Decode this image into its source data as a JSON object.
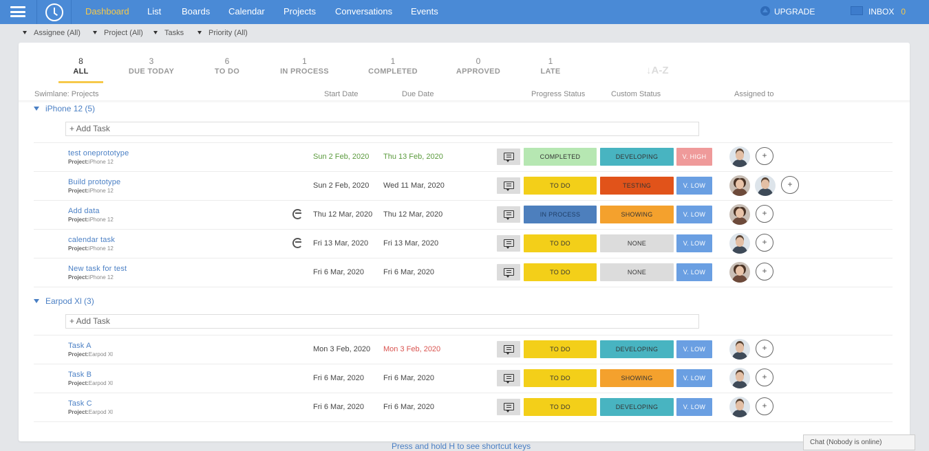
{
  "nav": {
    "items": [
      "Dashboard",
      "List",
      "Boards",
      "Calendar",
      "Projects",
      "Conversations",
      "Events"
    ],
    "active": "Dashboard",
    "upgrade_label": "UPGRADE",
    "inbox_label": "INBOX",
    "inbox_count": "0"
  },
  "filters": [
    "Assignee (All)",
    "Project (All)",
    "Tasks",
    "Priority (All)"
  ],
  "tabs": [
    {
      "count": "8",
      "label": "ALL"
    },
    {
      "count": "3",
      "label": "DUE TODAY"
    },
    {
      "count": "6",
      "label": "TO DO"
    },
    {
      "count": "1",
      "label": "IN PROCESS"
    },
    {
      "count": "1",
      "label": "COMPLETED"
    },
    {
      "count": "0",
      "label": "APPROVED"
    },
    {
      "count": "1",
      "label": "LATE"
    }
  ],
  "sort_label": "↓A-Z",
  "columns": {
    "swimlane": "Swimlane: Projects",
    "start": "Start Date",
    "due": "Due Date",
    "progress": "Progress Status",
    "custom": "Custom Status",
    "assigned": "Assigned to"
  },
  "add_task_label": "+ Add Task",
  "project_prefix": "Project:",
  "colors": {
    "topbar": "#4a8ad6",
    "accent": "#f6c94a",
    "completed": "#b6e7b2",
    "todo": "#f3cf19",
    "in_process": "#4d7fbd",
    "developing": "#48b4c1",
    "testing": "#e1531a",
    "showing": "#f4a12d",
    "none": "#dcdcdc",
    "v_high": "#ef9a9a",
    "v_low": "#6a9fe2"
  },
  "groups": [
    {
      "title": "iPhone 12 (5)",
      "tasks": [
        {
          "name": "test oneprototype",
          "project": "iPhone 12",
          "start": "Sun 2 Feb, 2020",
          "due": "Thu 13 Feb, 2020",
          "date_style": "green",
          "progress": "COMPLETED",
          "progress_color": "#b6e7b2",
          "custom": "DEVELOPING",
          "custom_color": "#48b4c1",
          "priority": "V. HIGH",
          "priority_color": "#ef9a9a",
          "dependency": false,
          "assignees": [
            "male"
          ]
        },
        {
          "name": "Build prototype",
          "project": "iPhone 12",
          "start": "Sun 2 Feb, 2020",
          "due": "Wed 11 Mar, 2020",
          "date_style": "",
          "progress": "TO DO",
          "progress_color": "#f3cf19",
          "custom": "TESTING",
          "custom_color": "#e1531a",
          "priority": "V. LOW",
          "priority_color": "#6a9fe2",
          "dependency": false,
          "assignees": [
            "female",
            "male"
          ]
        },
        {
          "name": "Add data",
          "project": "iPhone 12",
          "start": "Thu 12 Mar, 2020",
          "due": "Thu 12 Mar, 2020",
          "date_style": "",
          "progress": "IN PROCESS",
          "progress_color": "#4d7fbd",
          "custom": "SHOWING",
          "custom_color": "#f4a12d",
          "priority": "V. LOW",
          "priority_color": "#6a9fe2",
          "dependency": true,
          "assignees": [
            "female"
          ]
        },
        {
          "name": "calendar task",
          "project": "iPhone 12",
          "start": "Fri 13 Mar, 2020",
          "due": "Fri 13 Mar, 2020",
          "date_style": "",
          "progress": "TO DO",
          "progress_color": "#f3cf19",
          "custom": "NONE",
          "custom_color": "#dcdcdc",
          "priority": "V. LOW",
          "priority_color": "#6a9fe2",
          "dependency": true,
          "assignees": [
            "male"
          ]
        },
        {
          "name": "New task for test",
          "project": "iPhone 12",
          "start": "Fri 6 Mar, 2020",
          "due": "Fri 6 Mar, 2020",
          "date_style": "",
          "progress": "TO DO",
          "progress_color": "#f3cf19",
          "custom": "NONE",
          "custom_color": "#dcdcdc",
          "priority": "V. LOW",
          "priority_color": "#6a9fe2",
          "dependency": false,
          "assignees": [
            "female"
          ]
        }
      ]
    },
    {
      "title": "Earpod Xl (3)",
      "tasks": [
        {
          "name": "Task A",
          "project": "Earpod Xl",
          "start": "Mon 3 Feb, 2020",
          "due": "Mon 3 Feb, 2020",
          "date_style": "red",
          "progress": "TO DO",
          "progress_color": "#f3cf19",
          "custom": "DEVELOPING",
          "custom_color": "#48b4c1",
          "priority": "V. LOW",
          "priority_color": "#6a9fe2",
          "dependency": false,
          "assignees": [
            "male"
          ]
        },
        {
          "name": "Task B",
          "project": "Earpod Xl",
          "start": "Fri 6 Mar, 2020",
          "due": "Fri 6 Mar, 2020",
          "date_style": "",
          "progress": "TO DO",
          "progress_color": "#f3cf19",
          "custom": "SHOWING",
          "custom_color": "#f4a12d",
          "priority": "V. LOW",
          "priority_color": "#6a9fe2",
          "dependency": false,
          "assignees": [
            "male"
          ]
        },
        {
          "name": "Task C",
          "project": "Earpod Xl",
          "start": "Fri 6 Mar, 2020",
          "due": "Fri 6 Mar, 2020",
          "date_style": "",
          "progress": "TO DO",
          "progress_color": "#f3cf19",
          "custom": "DEVELOPING",
          "custom_color": "#48b4c1",
          "priority": "V. LOW",
          "priority_color": "#6a9fe2",
          "dependency": false,
          "assignees": [
            "male"
          ]
        }
      ]
    }
  ],
  "footer_hint": "Press and hold H to see shortcut keys",
  "chat_label": "Chat (Nobody is online)"
}
